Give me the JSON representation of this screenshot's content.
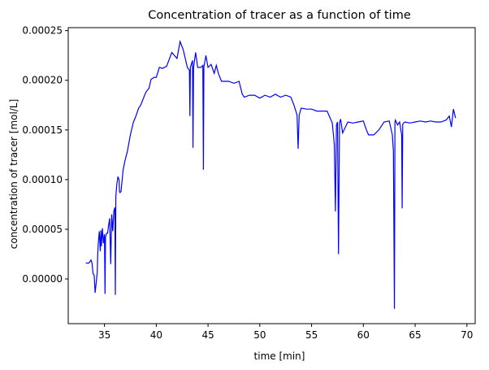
{
  "chart_data": {
    "type": "line",
    "title": "Concentration of tracer as a function of time",
    "xlabel": "time [min]",
    "ylabel": "concentration of tracer [mol/L]",
    "xlim": [
      31.5,
      70.8
    ],
    "ylim": [
      -4.5e-05,
      0.000253
    ],
    "xticks": [
      35,
      40,
      45,
      50,
      55,
      60,
      65,
      70
    ],
    "xtick_labels": [
      "35",
      "40",
      "45",
      "50",
      "55",
      "60",
      "65",
      "70"
    ],
    "yticks": [
      0.0,
      5e-05,
      0.0001,
      0.00015,
      0.0002,
      0.00025
    ],
    "ytick_labels": [
      "0.00000",
      "0.00005",
      "0.00010",
      "0.00015",
      "0.00020",
      "0.00025"
    ],
    "grid": false,
    "series": [
      {
        "color": "#0000ff",
        "x": [
          33.2,
          33.5,
          33.7,
          33.8,
          33.9,
          34.0,
          34.1,
          34.3,
          34.35,
          34.4,
          34.5,
          34.6,
          34.65,
          34.7,
          34.8,
          34.9,
          35.0,
          35.05,
          35.1,
          35.2,
          35.3,
          35.4,
          35.5,
          35.6,
          35.7,
          35.8,
          35.9,
          36.0,
          36.05,
          36.1,
          36.2,
          36.3,
          36.4,
          36.45,
          36.5,
          36.6,
          36.8,
          37.0,
          37.2,
          37.5,
          37.8,
          38.0,
          38.3,
          38.5,
          38.8,
          39.0,
          39.3,
          39.5,
          39.8,
          40.0,
          40.3,
          40.6,
          41.0,
          41.5,
          42.0,
          42.3,
          42.6,
          42.8,
          43.0,
          43.2,
          43.25,
          43.3,
          43.5,
          43.55,
          43.6,
          43.8,
          44.0,
          44.3,
          44.5,
          44.55,
          44.6,
          44.8,
          45.0,
          45.3,
          45.6,
          45.8,
          46.0,
          46.3,
          46.6,
          47.0,
          47.5,
          48.0,
          48.3,
          48.5,
          49.0,
          49.5,
          50.0,
          50.5,
          51.0,
          51.5,
          52.0,
          52.5,
          53.0,
          53.3,
          53.6,
          53.7,
          53.8,
          54.0,
          54.5,
          55.0,
          55.5,
          56.0,
          56.5,
          57.0,
          57.2,
          57.3,
          57.4,
          57.5,
          57.6,
          57.7,
          57.8,
          58.0,
          58.5,
          59.0,
          59.5,
          60.0,
          60.3,
          60.5,
          61.0,
          61.5,
          62.0,
          62.5,
          62.8,
          62.9,
          63.0,
          63.05,
          63.1,
          63.3,
          63.5,
          63.7,
          63.75,
          63.8,
          64.0,
          64.5,
          65.0,
          65.5,
          66.0,
          66.5,
          67.0,
          67.5,
          68.0,
          68.3,
          68.5,
          68.7,
          68.9
        ],
        "y": [
          1.6e-05,
          1.6e-05,
          1.9e-05,
          1.6e-05,
          5e-06,
          4e-06,
          -1.4e-05,
          6e-06,
          2.5e-05,
          3.6e-05,
          4.8e-05,
          2.8e-05,
          4.9e-05,
          3.3e-05,
          5.1e-05,
          3.6e-05,
          4.5e-05,
          -1.5e-05,
          4.2e-05,
          4.6e-05,
          4.6e-05,
          5.4e-05,
          6.1e-05,
          1.5e-05,
          6.5e-05,
          4.8e-05,
          6.8e-05,
          7.2e-05,
          -1.6e-05,
          8.3e-05,
          9.6e-05,
          0.000103,
          0.0001,
          8.8e-05,
          8.7e-05,
          8.8e-05,
          0.00011,
          0.00012,
          0.000128,
          0.000145,
          0.000158,
          0.000163,
          0.000172,
          0.000175,
          0.000183,
          0.000188,
          0.000192,
          0.000201,
          0.000203,
          0.000203,
          0.000213,
          0.000212,
          0.000214,
          0.000228,
          0.000222,
          0.000239,
          0.000231,
          0.000222,
          0.000213,
          0.00021,
          0.000164,
          0.000213,
          0.00022,
          0.000132,
          0.000213,
          0.000228,
          0.000213,
          0.000213,
          0.000215,
          0.00011,
          0.000213,
          0.000225,
          0.000213,
          0.000216,
          0.000207,
          0.000215,
          0.000207,
          0.000199,
          0.000199,
          0.000199,
          0.000197,
          0.000199,
          0.000186,
          0.000183,
          0.000185,
          0.000185,
          0.000182,
          0.000185,
          0.000183,
          0.000186,
          0.000183,
          0.000185,
          0.000183,
          0.000175,
          0.000165,
          0.000131,
          0.000165,
          0.000172,
          0.000171,
          0.000171,
          0.000169,
          0.000169,
          0.000169,
          0.000157,
          0.000135,
          6.8e-05,
          0.000155,
          0.000158,
          2.5e-05,
          0.000157,
          0.000161,
          0.000147,
          0.000158,
          0.000157,
          0.000158,
          0.000159,
          0.00015,
          0.000145,
          0.000145,
          0.00015,
          0.000158,
          0.000159,
          0.000145,
          0.000129,
          -3e-05,
          0.000158,
          0.00016,
          0.000155,
          0.000158,
          0.000145,
          7.1e-05,
          0.000156,
          0.000158,
          0.000157,
          0.000158,
          0.000159,
          0.000158,
          0.000159,
          0.000158,
          0.000158,
          0.00016,
          0.000164,
          0.000153,
          0.000171,
          0.000162
        ]
      }
    ]
  }
}
